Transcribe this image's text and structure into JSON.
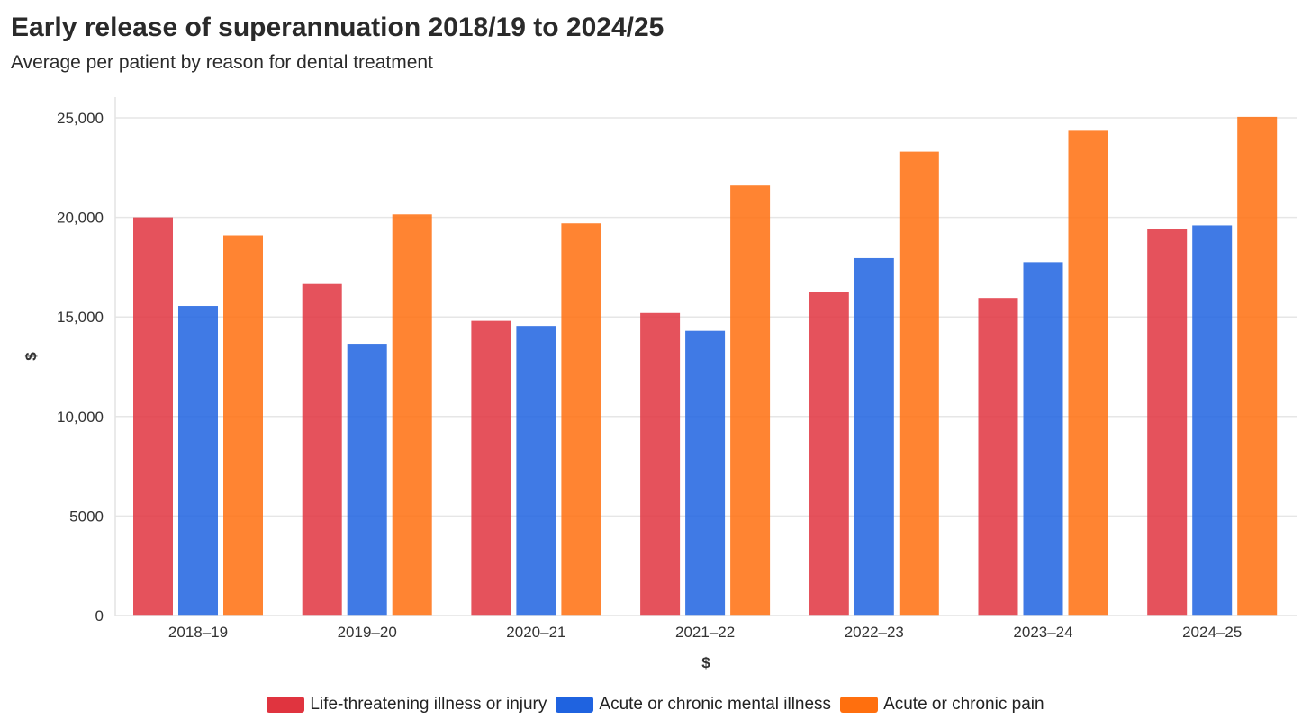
{
  "header": {
    "title": "Early release of superannuation 2018/19 to 2024/25",
    "subtitle": "Average per patient by reason for dental treatment"
  },
  "chart_data": {
    "type": "bar",
    "title": "Early release of superannuation 2018/19 to 2024/25",
    "subtitle": "Average per patient by reason for dental treatment",
    "xlabel": "$",
    "ylabel": "$",
    "ylim": [
      0,
      25000
    ],
    "yticks": [
      0,
      5000,
      10000,
      15000,
      20000,
      25000
    ],
    "ytick_labels": [
      "0",
      "5000",
      "10,000",
      "15,000",
      "20,000",
      "25,000"
    ],
    "grid": true,
    "legend_position": "bottom-center",
    "categories": [
      "2018–19",
      "2019–20",
      "2020–21",
      "2021–22",
      "2022–23",
      "2023–24",
      "2024–25"
    ],
    "series": [
      {
        "name": "Life-threatening illness or injury",
        "color": "#e0343f",
        "values": [
          20000,
          16650,
          14800,
          15200,
          16250,
          15950,
          19400
        ]
      },
      {
        "name": "Acute or chronic mental illness",
        "color": "#1f63e0",
        "values": [
          15550,
          13650,
          14550,
          14300,
          17950,
          17750,
          19600
        ]
      },
      {
        "name": "Acute or chronic pain",
        "color": "#ff6f0e",
        "values": [
          19100,
          20150,
          19700,
          21600,
          23300,
          24350,
          25050
        ]
      }
    ]
  }
}
